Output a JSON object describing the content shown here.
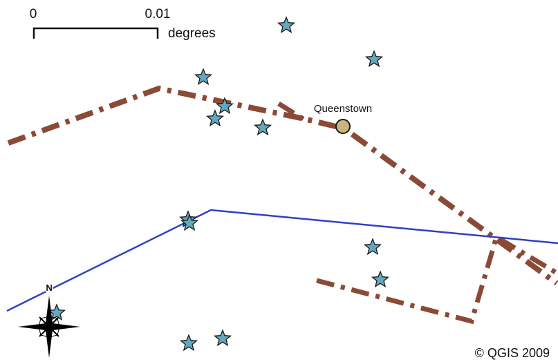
{
  "scalebar": {
    "start_label": "0",
    "end_label": "0.01",
    "unit_label": "degrees"
  },
  "place_label": "Queenstown",
  "north_label": "N",
  "copyright": "© QGIS 2009",
  "colors": {
    "road": "#8b4a36",
    "river": "#2f3fc8",
    "point_fill": "#63a8be",
    "town_fill": "#c9b57b",
    "label_halo": "#ffffff"
  },
  "icons": {
    "point_symbol": "star-icon",
    "town_symbol": "circle-icon",
    "north_arrow": "compass-rose-icon"
  }
}
